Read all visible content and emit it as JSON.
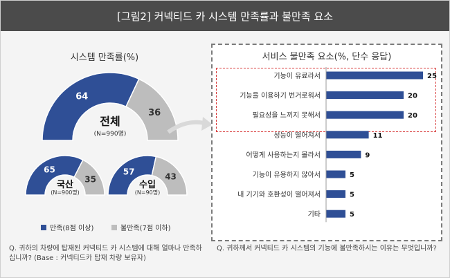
{
  "header": {
    "title": "[그림2] 커넥티드 카 시스템 만족률과 불만족 요소"
  },
  "colors": {
    "satisfied": "#2f4f96",
    "unsatisfied": "#bdbdbd",
    "header_bg": "#4b4b4b",
    "highlight": "#d83b3b"
  },
  "left_panel": {
    "title": "시스템 만족률(%)",
    "legend": {
      "satisfied": "만족(8점 이상)",
      "unsatisfied": "불만족(7점 이하)"
    },
    "question": "Q. 귀하의 차량에 탑재된 커넥티드 카 시스템에 대해 얼마나 만족하십니까? (Base : 커넥티드카 탑재 차량 보유자)"
  },
  "right_panel": {
    "title": "서비스 불만족 요소(%, 단수 응답)",
    "question": "Q. 귀하께서 커넥티드 카 시스템의 기능에 불만족하시는 이유는 무엇입니까?"
  },
  "chart_data": [
    {
      "type": "pie",
      "variant": "semicircle-gauge",
      "label": "전체",
      "sublabel": "(N=990명)",
      "slices": [
        {
          "name": "만족",
          "value": 64
        },
        {
          "name": "불만족",
          "value": 36
        }
      ]
    },
    {
      "type": "pie",
      "variant": "semicircle-gauge",
      "label": "국산",
      "sublabel": "(N=900명)",
      "slices": [
        {
          "name": "만족",
          "value": 65
        },
        {
          "name": "불만족",
          "value": 35
        }
      ]
    },
    {
      "type": "pie",
      "variant": "semicircle-gauge",
      "label": "수입",
      "sublabel": "(N=90명)",
      "slices": [
        {
          "name": "만족",
          "value": 57
        },
        {
          "name": "불만족",
          "value": 43
        }
      ]
    },
    {
      "type": "bar",
      "orientation": "horizontal",
      "title": "서비스 불만족 요소(%, 단수 응답)",
      "categories": [
        "기능이 유료라서",
        "기능을 이용하기 번거로워서",
        "필요성을 느끼지 못해서",
        "성능이 떨어져서",
        "어떻게 사용하는지 몰라서",
        "기능이 유용하지 않아서",
        "내 기기와 호환성이 떨어져서",
        "기타"
      ],
      "values": [
        25,
        20,
        20,
        11,
        9,
        5,
        5,
        5
      ],
      "highlighted_categories": [
        "기능이 유료라서",
        "기능을 이용하기 번거로워서",
        "필요성을 느끼지 못해서"
      ]
    }
  ]
}
